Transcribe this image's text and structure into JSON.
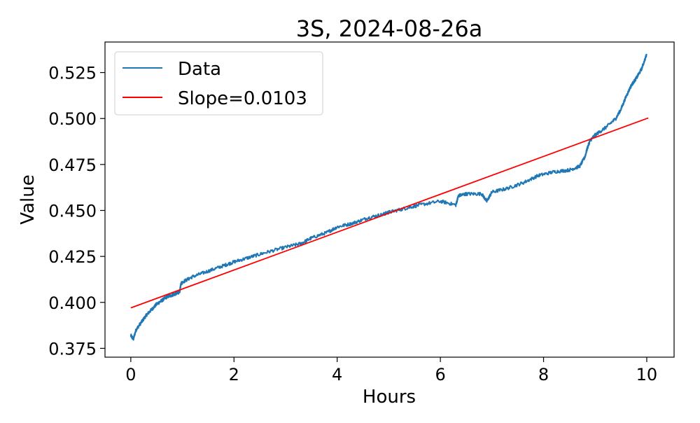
{
  "chart_data": {
    "type": "line",
    "title": "3S, 2024-08-26a",
    "xlabel": "Hours",
    "ylabel": "Value",
    "xlim": [
      -0.5,
      10.53
    ],
    "ylim": [
      0.3702,
      0.5416
    ],
    "xticks": [
      0,
      2,
      4,
      6,
      8,
      10
    ],
    "yticks": [
      0.375,
      0.4,
      0.425,
      0.45,
      0.475,
      0.5,
      0.525
    ],
    "xtick_labels": [
      "0",
      "2",
      "4",
      "6",
      "8",
      "10"
    ],
    "ytick_labels": [
      "0.375",
      "0.400",
      "0.425",
      "0.450",
      "0.475",
      "0.500",
      "0.525"
    ],
    "legend_position": "top-left",
    "grid": false,
    "series": [
      {
        "name": "Data",
        "color": "#1f77b4",
        "style": "noisy-line",
        "x": [
          0,
          0.05,
          0.1,
          0.2,
          0.3,
          0.4,
          0.5,
          0.6,
          0.7,
          0.8,
          0.9,
          0.95,
          0.97,
          1.0,
          1.2,
          1.5,
          1.8,
          2.0,
          2.3,
          2.6,
          3.0,
          3.3,
          3.5,
          3.8,
          4.0,
          4.3,
          4.6,
          4.9,
          5.0,
          5.3,
          5.6,
          6.0,
          6.3,
          6.35,
          6.5,
          6.8,
          6.9,
          7.0,
          7.3,
          7.6,
          7.9,
          8.2,
          8.5,
          8.7,
          8.8,
          8.85,
          8.9,
          9.0,
          9.2,
          9.4,
          9.5,
          9.6,
          9.7,
          9.8,
          9.9,
          10.0
        ],
        "y": [
          0.382,
          0.38,
          0.385,
          0.389,
          0.393,
          0.396,
          0.399,
          0.401,
          0.403,
          0.404,
          0.405,
          0.406,
          0.41,
          0.411,
          0.414,
          0.417,
          0.42,
          0.422,
          0.4245,
          0.427,
          0.43,
          0.432,
          0.435,
          0.438,
          0.441,
          0.443,
          0.446,
          0.448,
          0.449,
          0.451,
          0.453,
          0.455,
          0.453,
          0.458,
          0.459,
          0.459,
          0.455,
          0.46,
          0.462,
          0.465,
          0.469,
          0.471,
          0.472,
          0.474,
          0.479,
          0.484,
          0.488,
          0.491,
          0.495,
          0.5,
          0.505,
          0.512,
          0.518,
          0.522,
          0.527,
          0.535
        ]
      },
      {
        "name": "Slope=0.0103",
        "color": "#ff0000",
        "style": "line",
        "x": [
          0,
          10.03
        ],
        "y": [
          0.397,
          0.5003
        ]
      }
    ]
  }
}
